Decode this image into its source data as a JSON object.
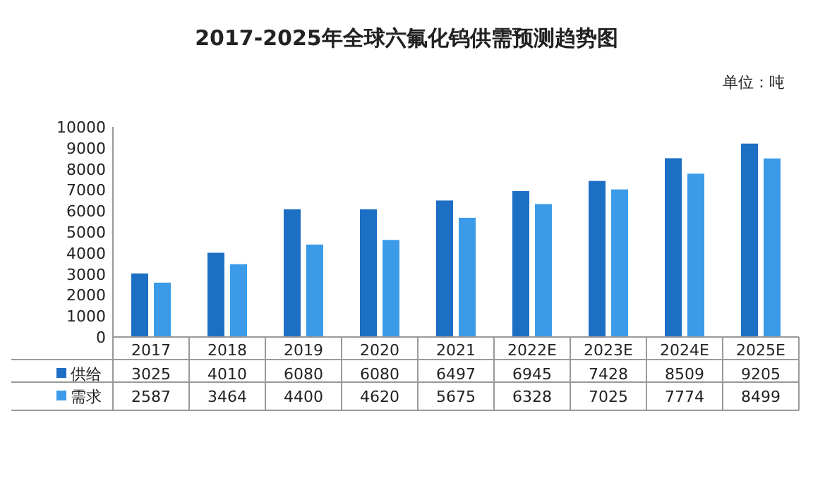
{
  "chart_data": {
    "type": "bar",
    "title": "2017-2025年全球六氟化钨供需预测趋势图",
    "ylabel": "单位：吨",
    "categories": [
      "2017",
      "2018",
      "2019",
      "2020",
      "2021",
      "2022E",
      "2023E",
      "2024E",
      "2025E"
    ],
    "series": [
      {
        "name": "供给",
        "color": "#1d6fc4",
        "values": [
          3025,
          4010,
          6080,
          6080,
          6497,
          6945,
          7428,
          8509,
          9205
        ]
      },
      {
        "name": "需求",
        "color": "#3b9be8",
        "values": [
          2587,
          3464,
          4400,
          4620,
          5675,
          6328,
          7025,
          7774,
          8499
        ]
      }
    ],
    "ylim": [
      0,
      10000
    ],
    "yticks": [
      0,
      1000,
      2000,
      3000,
      4000,
      5000,
      6000,
      7000,
      8000,
      9000,
      10000
    ],
    "grid": false,
    "legend": "bottom",
    "data_labels": true
  }
}
